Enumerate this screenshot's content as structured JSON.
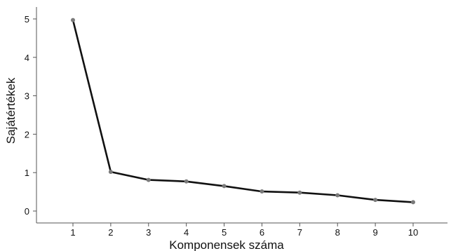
{
  "chart_data": {
    "type": "line",
    "title": "",
    "xlabel": "Komponensek száma",
    "ylabel": "Sajátértékek",
    "x": [
      1,
      2,
      3,
      4,
      5,
      6,
      7,
      8,
      9,
      10
    ],
    "y": [
      4.97,
      1.02,
      0.81,
      0.77,
      0.65,
      0.51,
      0.48,
      0.41,
      0.29,
      0.23
    ],
    "xticks": [
      "1",
      "2",
      "3",
      "4",
      "5",
      "6",
      "7",
      "8",
      "9",
      "10"
    ],
    "yticks": [
      "0",
      "1",
      "2",
      "3",
      "4",
      "5"
    ],
    "xlim": [
      0,
      11
    ],
    "ylim": [
      0,
      5
    ],
    "grid": false,
    "legend": false,
    "colors": {
      "line": "#111111",
      "marker": "#7a7a7a",
      "axis": "#555555"
    }
  }
}
